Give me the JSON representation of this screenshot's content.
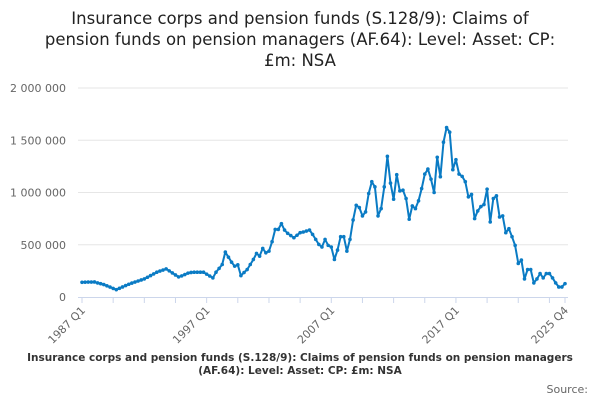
{
  "chart_data": {
    "type": "line",
    "title": "Insurance corps and pension funds (S.128/9): Claims of pension funds on pension managers (AF.64): Level: Asset: CP: £m: NSA",
    "caption": "Insurance corps and pension funds (S.128/9): Claims of pension funds on pension managers (AF.64): Level: Asset: CP: £m: NSA",
    "source_label": "Source:",
    "frequency": "quarterly",
    "x_start": "1987 Q1",
    "x_end": "2025 Q4",
    "x_tick_labels": [
      "1987 Q1",
      "1997 Q1",
      "2007 Q1",
      "2017 Q1",
      "2025 Q4"
    ],
    "y_tick_labels": [
      "0",
      "500 000",
      "1 000 000",
      "1 500 000",
      "2 000 000"
    ],
    "ylim": [
      0,
      2000000
    ],
    "grid": true,
    "line_color": "#0a7bc4",
    "values": [
      141000,
      142000,
      143000,
      143000,
      144000,
      135000,
      127000,
      119000,
      107000,
      95000,
      82000,
      70000,
      83000,
      96000,
      109000,
      122000,
      133000,
      143000,
      153000,
      163000,
      173000,
      189000,
      205000,
      221000,
      237000,
      248000,
      258000,
      269000,
      250000,
      230000,
      211000,
      192000,
      202000,
      215000,
      228000,
      235000,
      237000,
      237000,
      237000,
      237000,
      219000,
      201000,
      183000,
      237000,
      274000,
      311000,
      430000,
      381000,
      333000,
      295000,
      308000,
      205000,
      234000,
      263000,
      311000,
      359000,
      417000,
      391000,
      465000,
      423000,
      439000,
      529000,
      647000,
      647000,
      702000,
      641000,
      609000,
      588000,
      567000,
      591000,
      615000,
      622000,
      631000,
      641000,
      599000,
      551000,
      503000,
      478000,
      551000,
      494000,
      478000,
      359000,
      449000,
      577000,
      577000,
      439000,
      551000,
      737000,
      878000,
      856000,
      776000,
      814000,
      990000,
      1103000,
      1054000,
      776000,
      846000,
      1054000,
      1346000,
      1090000,
      936000,
      1170000,
      1016000,
      1022000,
      942000,
      744000,
      872000,
      846000,
      920000,
      1038000,
      1176000,
      1224000,
      1128000,
      1000000,
      1337000,
      1151000,
      1481000,
      1622000,
      1577000,
      1218000,
      1314000,
      1176000,
      1154000,
      1103000,
      958000,
      981000,
      750000,
      824000,
      865000,
      885000,
      1032000,
      718000,
      942000,
      968000,
      766000,
      776000,
      615000,
      654000,
      577000,
      494000,
      321000,
      353000,
      173000,
      263000,
      263000,
      135000,
      173000,
      224000,
      183000,
      224000,
      224000,
      183000,
      135000,
      96000,
      96000,
      128000
    ]
  }
}
